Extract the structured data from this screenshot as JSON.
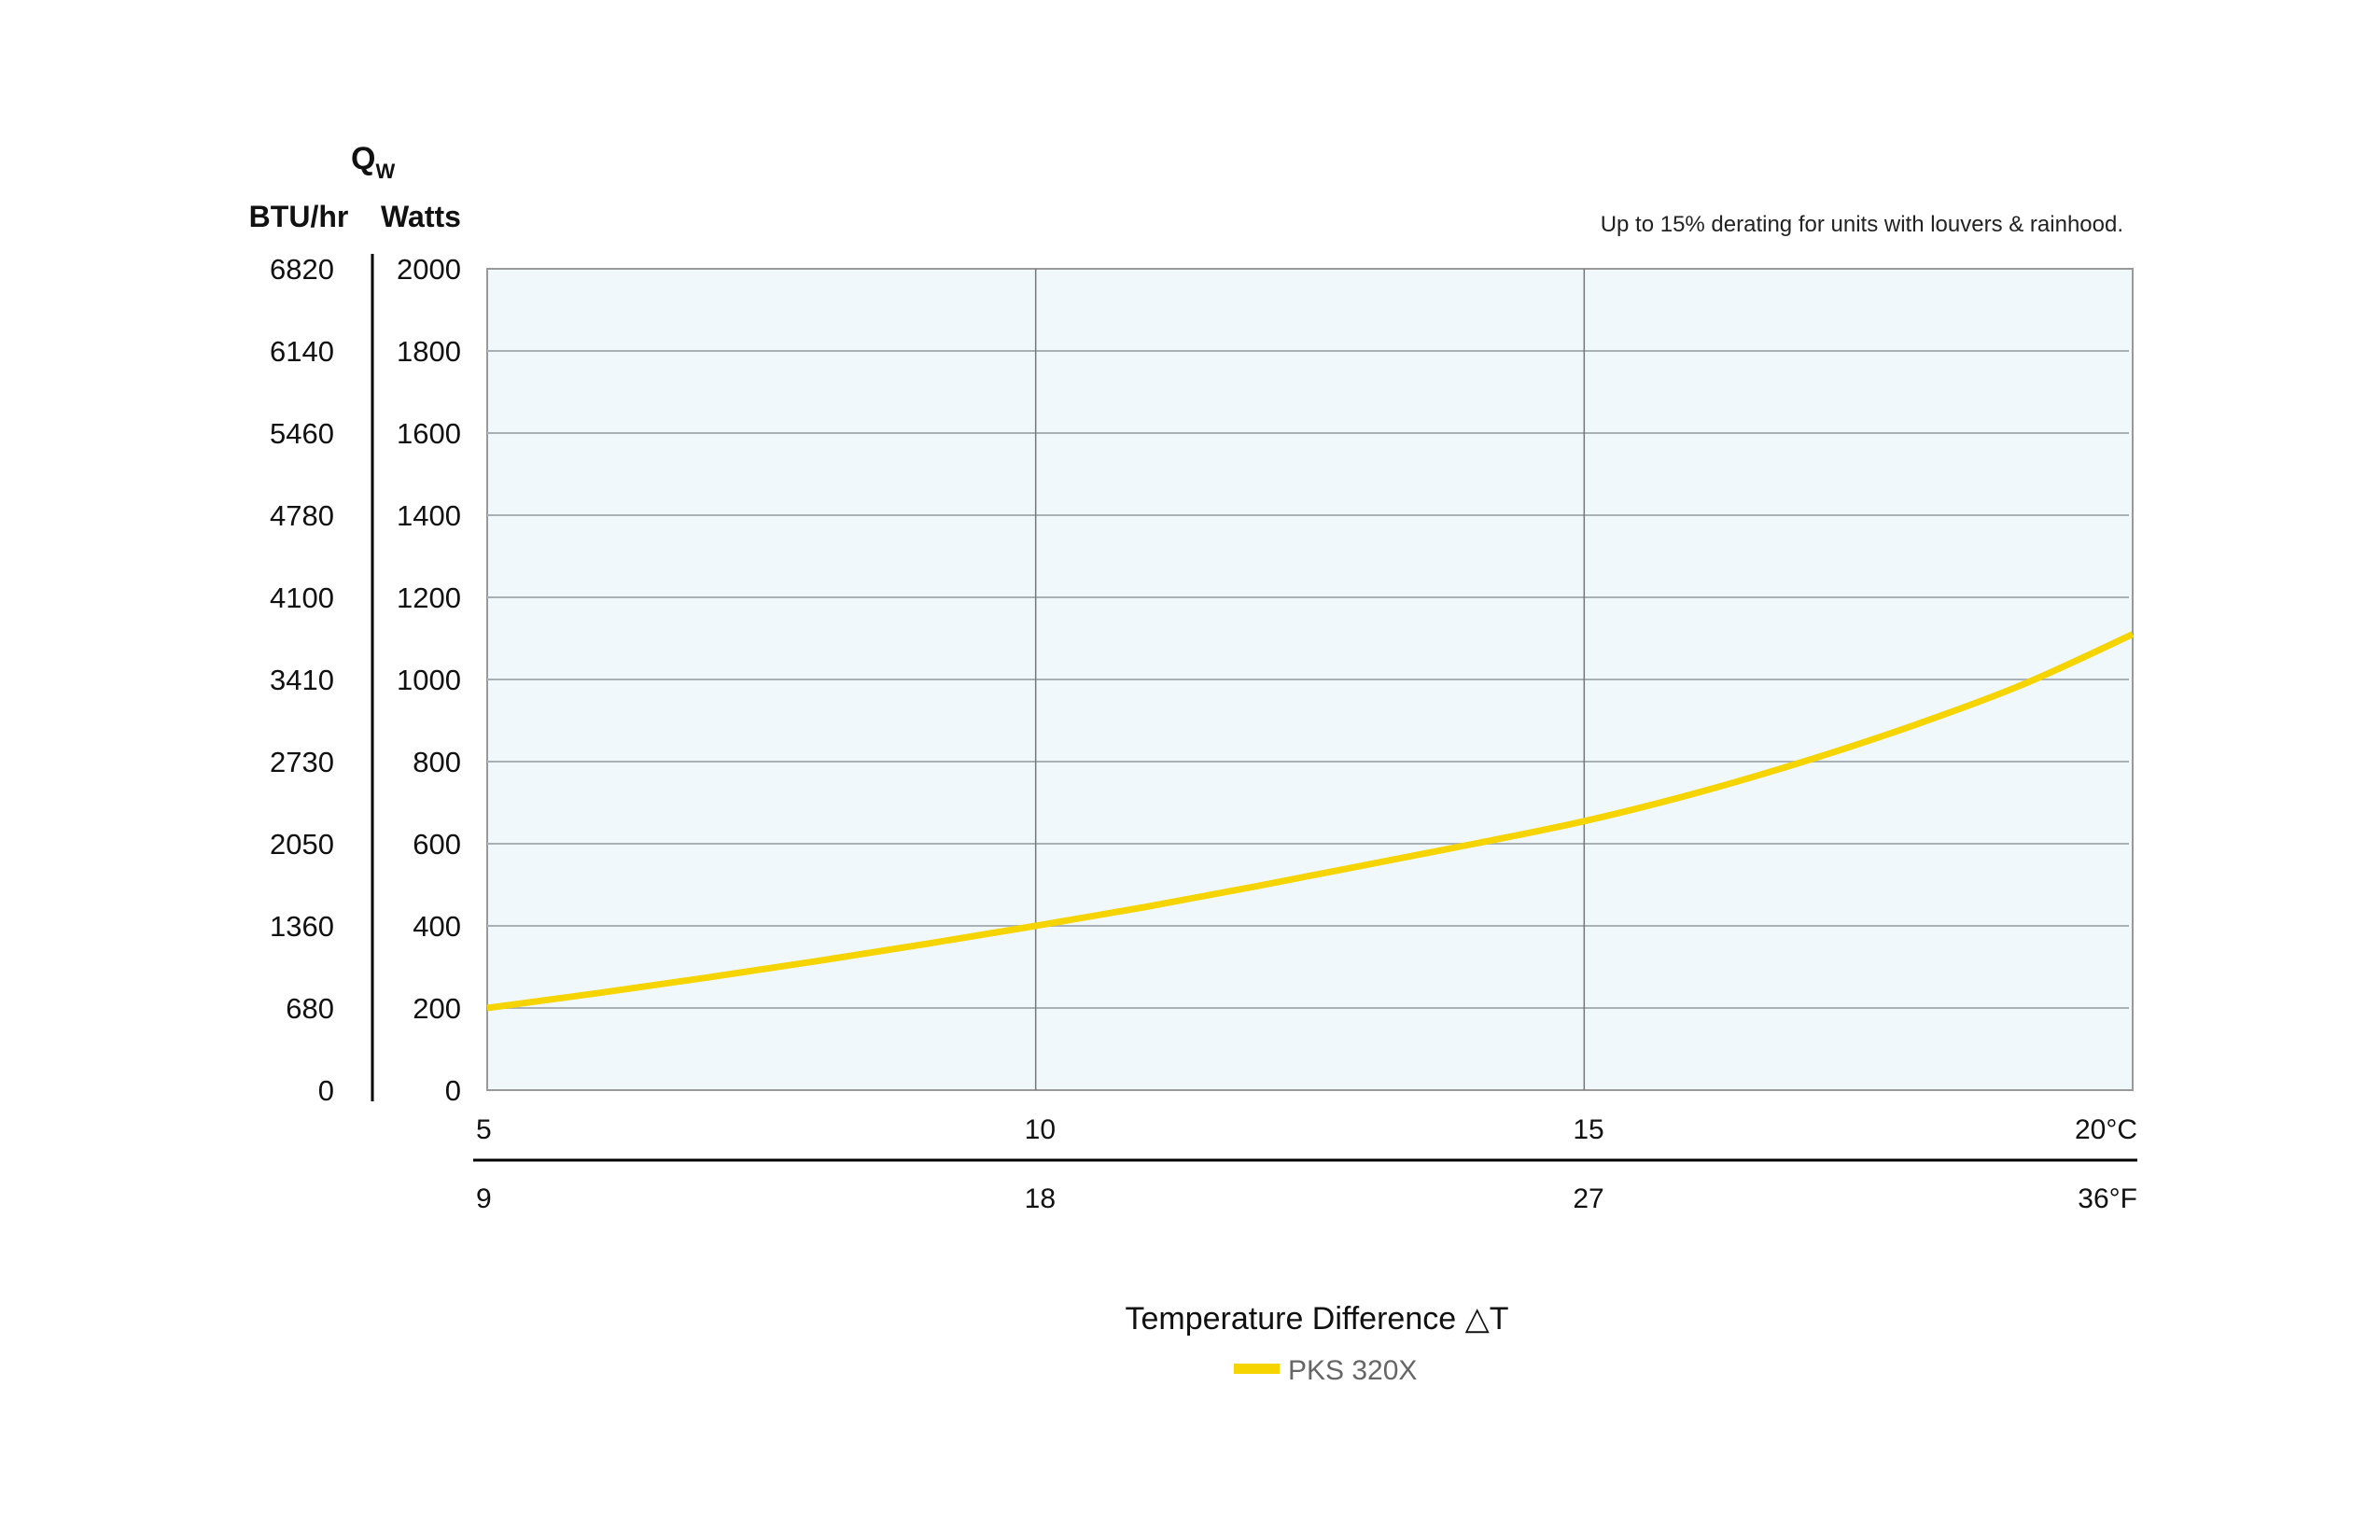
{
  "chart_data": {
    "type": "line",
    "y_symbol": "Q",
    "y_symbol_subscript": "W",
    "y_units_left": "BTU/hr",
    "y_units_right": "Watts",
    "note": "Up to 15% derating for units with louvers & rainhood.",
    "xlabel": "Temperature Difference △T",
    "xlim": [
      5,
      20
    ],
    "ylim": [
      0,
      2000
    ],
    "grid": true,
    "plot_background": "#f0f8fc",
    "y_ticks_watts": [
      "2000",
      "1800",
      "1600",
      "1400",
      "1200",
      "1000",
      "800",
      "600",
      "400",
      "200",
      "0"
    ],
    "y_ticks_btu": [
      "6820",
      "6140",
      "5460",
      "4780",
      "4100",
      "3410",
      "2730",
      "2050",
      "1360",
      "680",
      "0"
    ],
    "x_ticks_c": [
      {
        "value": 5,
        "label": "5"
      },
      {
        "value": 10,
        "label": "10"
      },
      {
        "value": 15,
        "label": "15"
      },
      {
        "value": 20,
        "label": "20°C"
      }
    ],
    "x_ticks_f": [
      {
        "value": 5,
        "label": "9"
      },
      {
        "value": 10,
        "label": "18"
      },
      {
        "value": 15,
        "label": "27"
      },
      {
        "value": 20,
        "label": "36°F"
      }
    ],
    "legend_position": "bottom",
    "series": [
      {
        "name": "PKS 320X",
        "color": "#f5d400",
        "x": [
          5,
          6,
          7,
          8,
          9,
          10,
          11,
          12,
          13,
          14,
          15,
          16,
          17,
          18,
          19,
          20
        ],
        "y": [
          200,
          236,
          274,
          314,
          356,
          400,
          446,
          496,
          548,
          600,
          655,
          722,
          800,
          888,
          988,
          1110
        ]
      }
    ]
  }
}
